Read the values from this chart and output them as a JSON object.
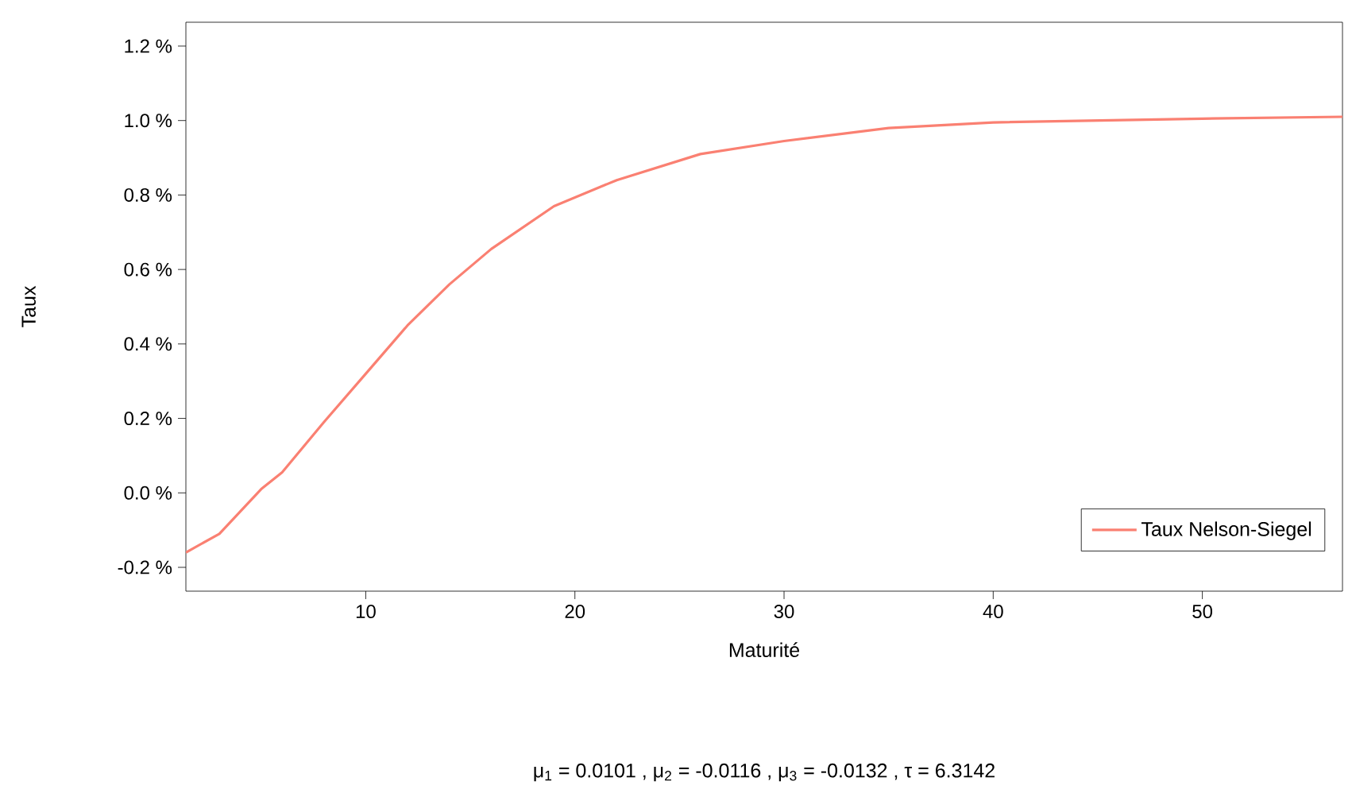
{
  "chart_data": {
    "type": "line",
    "xlabel": "Maturité",
    "ylabel": "Taux",
    "subtitle": "μ$_{1}$ = 0.0101 ,  μ$_{2}$ = -0.0116 ,  μ$_{3}$ = -0.0132 ,  τ = 6.3142",
    "xlim": [
      1.4,
      56.7
    ],
    "ylim": [
      -0.264,
      1.264
    ],
    "xticks": [
      10,
      20,
      30,
      40,
      50
    ],
    "yticks": [
      {
        "value": -0.2,
        "label": "-0.2 %"
      },
      {
        "value": 0.0,
        "label": "0.0 %"
      },
      {
        "value": 0.2,
        "label": "0.2 %"
      },
      {
        "value": 0.4,
        "label": "0.4 %"
      },
      {
        "value": 0.6,
        "label": "0.6 %"
      },
      {
        "value": 0.8,
        "label": "0.8 %"
      },
      {
        "value": 1.0,
        "label": "1.0 %"
      },
      {
        "value": 1.2,
        "label": "1.2 %"
      }
    ],
    "grid": false,
    "legend": "bottom right",
    "marker": "none",
    "line_style": "solid",
    "series": [
      {
        "name": "Taux Nelson-Siegel",
        "color": "#fa8072",
        "x": [
          1.4,
          3,
          5,
          6,
          8,
          10,
          12,
          14,
          16,
          19,
          22,
          26,
          30,
          35,
          40,
          45,
          50,
          56.7
        ],
        "values": [
          -0.16,
          -0.11,
          0.01,
          0.055,
          0.19,
          0.32,
          0.45,
          0.56,
          0.655,
          0.77,
          0.84,
          0.91,
          0.945,
          0.98,
          0.995,
          1.0,
          1.005,
          1.01
        ]
      }
    ]
  }
}
